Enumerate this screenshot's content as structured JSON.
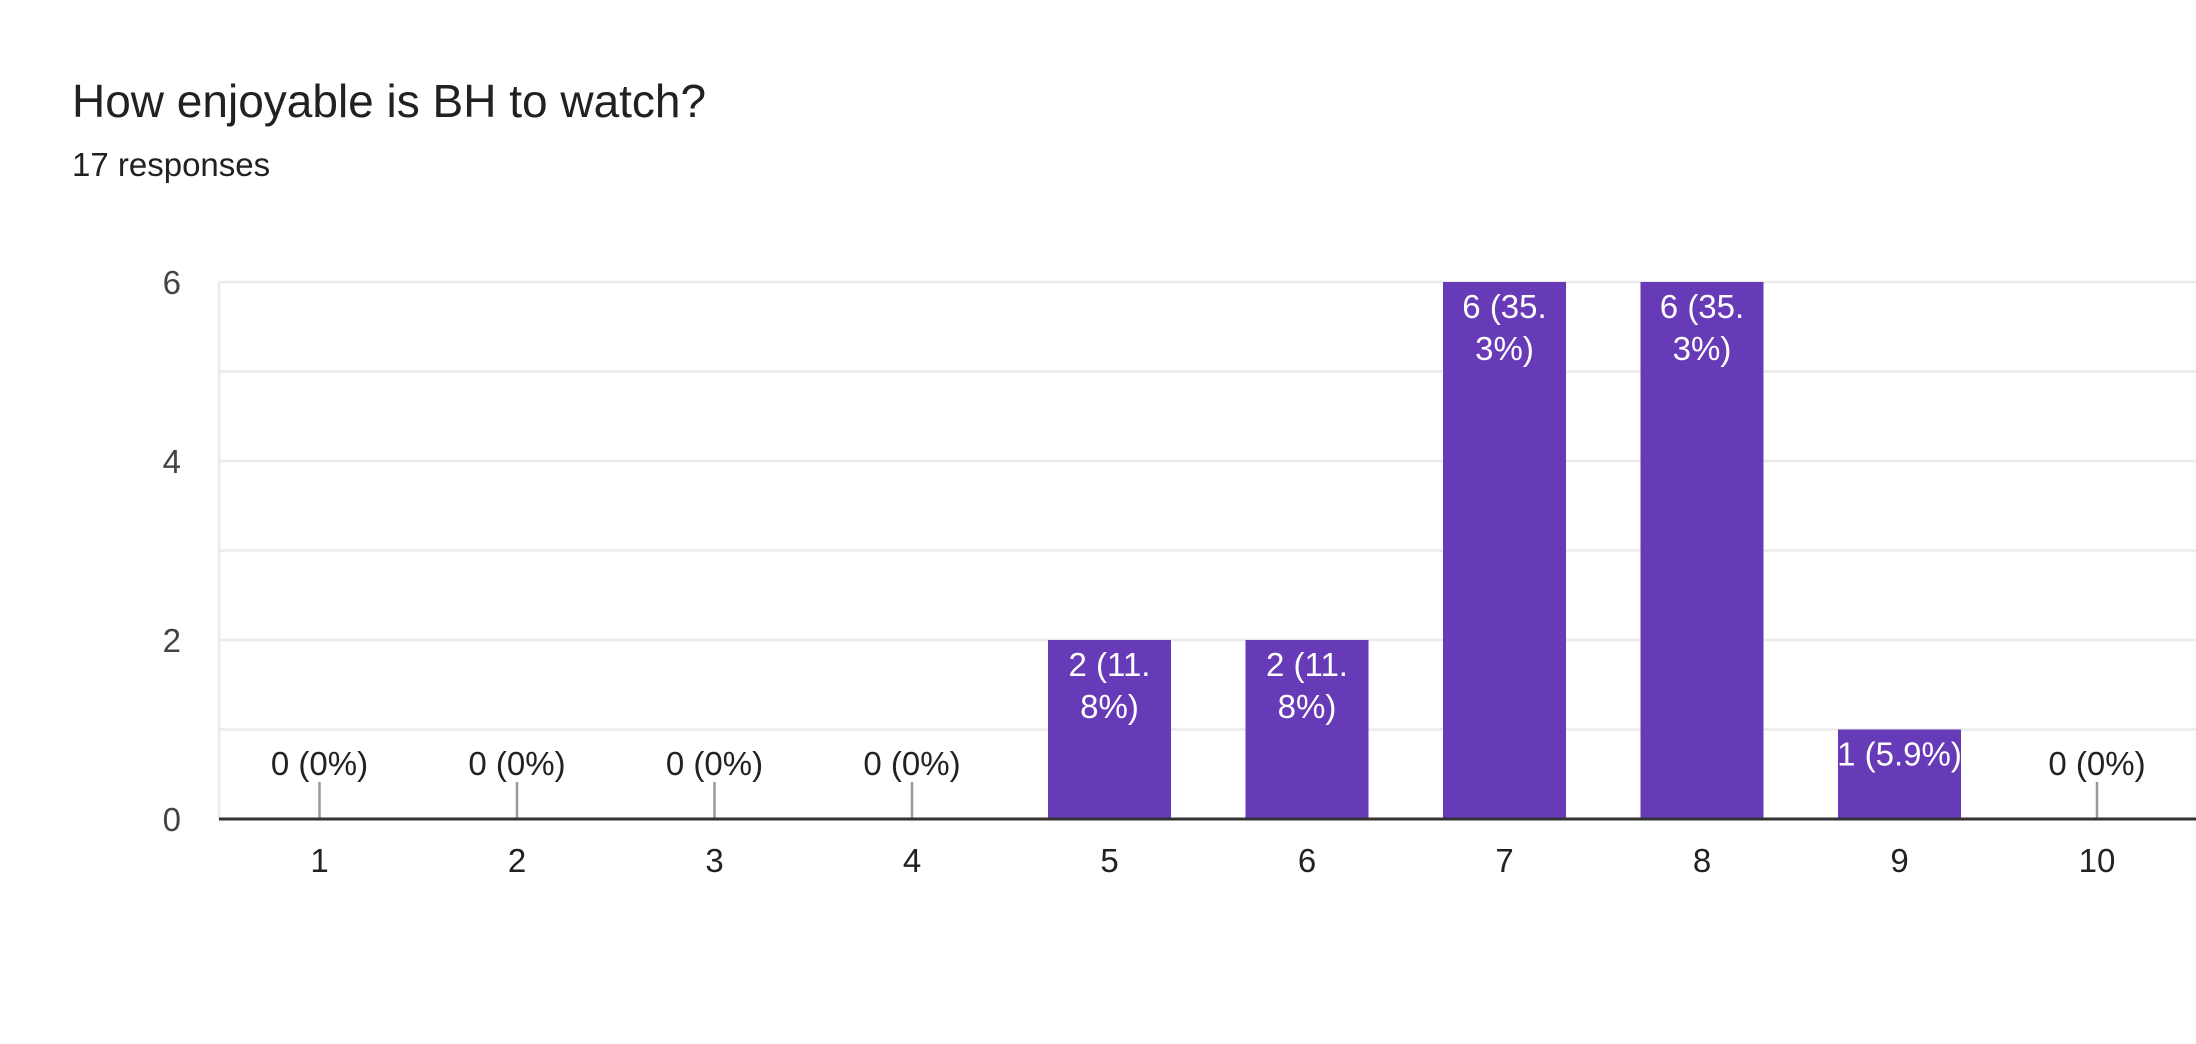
{
  "header": {
    "title": "How enjoyable is BH to watch?",
    "subtitle": "17 responses"
  },
  "colors": {
    "bar": "#673AB7",
    "gridline": "#EBEBEB",
    "axis": "#333333",
    "leader": "#999999"
  },
  "chart_data": {
    "type": "bar",
    "title": "How enjoyable is BH to watch?",
    "subtitle": "17 responses",
    "xlabel": "",
    "ylabel": "",
    "categories": [
      "1",
      "2",
      "3",
      "4",
      "5",
      "6",
      "7",
      "8",
      "9",
      "10"
    ],
    "values": [
      0,
      0,
      0,
      0,
      2,
      2,
      6,
      6,
      1,
      0
    ],
    "data_labels": [
      [
        "0 (0%)"
      ],
      [
        "0 (0%)"
      ],
      [
        "0 (0%)"
      ],
      [
        "0 (0%)"
      ],
      [
        "2 (11.",
        "8%)"
      ],
      [
        "2 (11.",
        "8%)"
      ],
      [
        "6 (35.",
        "3%)"
      ],
      [
        "6 (35.",
        "3%)"
      ],
      [
        "1 (5.9%)"
      ],
      [
        "0 (0%)"
      ]
    ],
    "y_ticks": [
      0,
      2,
      4,
      6
    ],
    "ylim": [
      0,
      6
    ],
    "grid": true,
    "legend": "none"
  }
}
